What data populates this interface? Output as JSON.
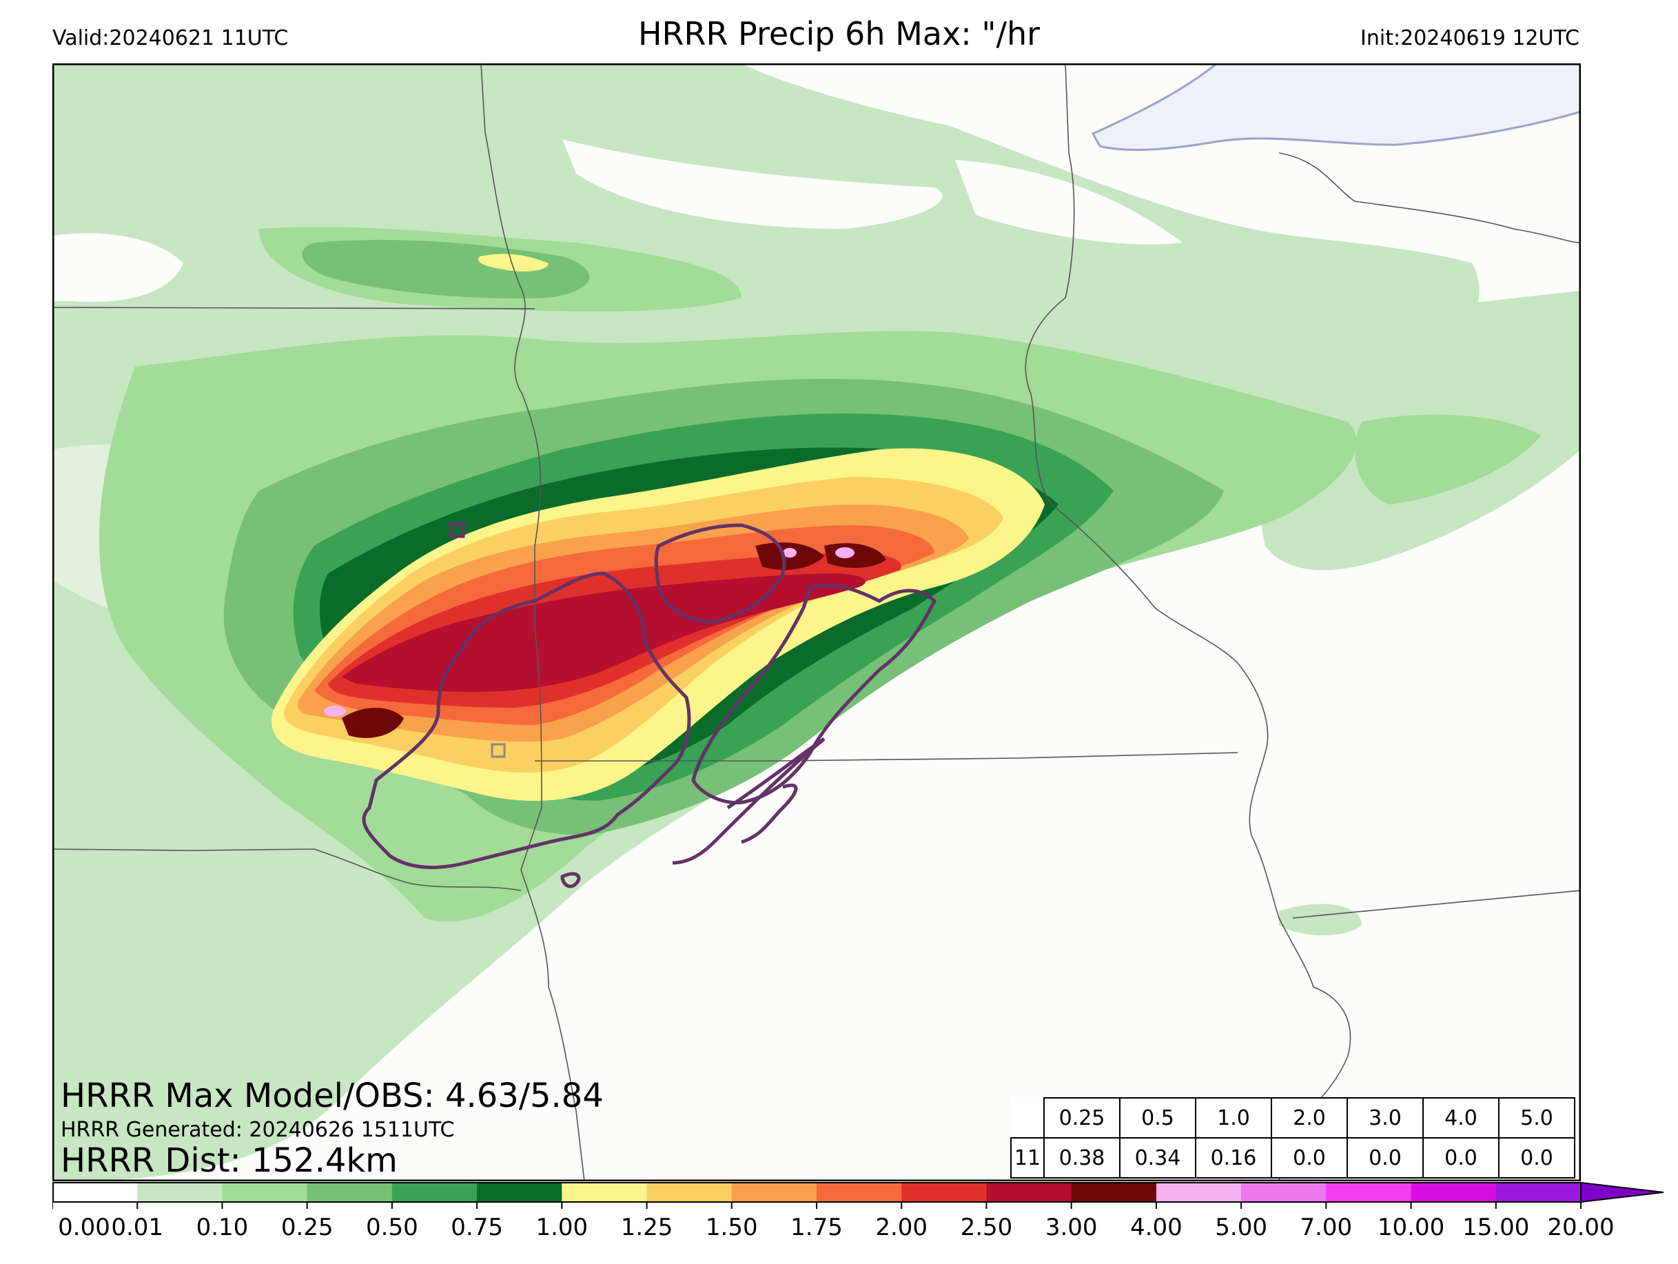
{
  "header": {
    "valid": "Valid:20240621 11UTC",
    "title": "HRRR Precip 6h Max: \"/hr",
    "init": "Init:20240619 12UTC"
  },
  "stats": {
    "max_line": "HRRR Max Model/OBS: 4.63/5.84",
    "generated_line": "HRRR Generated: 20240626 1511UTC",
    "dist_line": "HRRR Dist: 152.4km"
  },
  "thresholds": {
    "headers": [
      "0.25",
      "0.5",
      "1.0",
      "2.0",
      "3.0",
      "4.0",
      "5.0"
    ],
    "row_label": "11",
    "values": [
      "0.38",
      "0.34",
      "0.16",
      "0.0",
      "0.0",
      "0.0",
      "0.0"
    ]
  },
  "colorbar": {
    "ticks": [
      "0.00",
      "0.01",
      "0.10",
      "0.25",
      "0.50",
      "0.75",
      "1.00",
      "1.25",
      "1.50",
      "1.75",
      "2.00",
      "2.50",
      "3.00",
      "4.00",
      "5.00",
      "7.00",
      "10.00",
      "15.00",
      "20.00"
    ],
    "colors": [
      "#ffffff",
      "#c7e6c2",
      "#a2dc98",
      "#77c077",
      "#3aa254",
      "#0a6b2a",
      "#fbf58b",
      "#fbd063",
      "#f9a14c",
      "#f46a3b",
      "#e0302c",
      "#b50f2f",
      "#6e0707",
      "#f5b2f1",
      "#ee79ee",
      "#f03ef0",
      "#d80ee1",
      "#9a18d9"
    ],
    "extend_color": "#7e00c8"
  },
  "map_colors": {
    "background": "#fcfcfb",
    "lake": "#eef1f8",
    "lake_edge": "#9aa3cc",
    "boundary": "#555555",
    "obs_contour": "#633266"
  }
}
